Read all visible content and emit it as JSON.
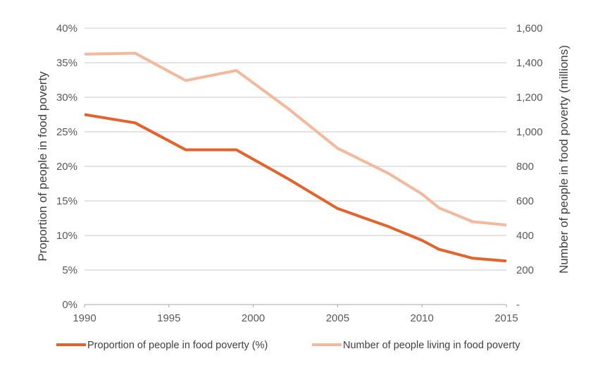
{
  "chart_data": {
    "type": "line",
    "x": [
      1990,
      1993,
      1996,
      1999,
      2002,
      2005,
      2008,
      2010,
      2011,
      2013,
      2015
    ],
    "x_ticks": [
      "1990",
      "1995",
      "2000",
      "2005",
      "2010",
      "2015"
    ],
    "x_tick_values": [
      1990,
      1995,
      2000,
      2005,
      2010,
      2015
    ],
    "xlim": [
      1990,
      2015
    ],
    "ylabel": "Proportion of people in food poverty",
    "ylim": [
      0,
      40
    ],
    "y_ticks": [
      "0%",
      "5%",
      "10%",
      "15%",
      "20%",
      "25%",
      "30%",
      "35%",
      "40%"
    ],
    "y_tick_values": [
      0,
      5,
      10,
      15,
      20,
      25,
      30,
      35,
      40
    ],
    "y2label": "Number of people in food poverty (millions)",
    "y2lim": [
      0,
      1600
    ],
    "y2_ticks": [
      "-",
      "200",
      "400",
      "600",
      "800",
      "1,000",
      "1,200",
      "1,400",
      "1,600"
    ],
    "y2_tick_values": [
      0,
      200,
      400,
      600,
      800,
      1000,
      1200,
      1400,
      1600
    ],
    "grid": true,
    "legend_position": "bottom",
    "series": [
      {
        "name": "Proportion of people in food poverty (%)",
        "axis": "left",
        "color": "#e5632b",
        "x": [
          1990,
          1993,
          1996,
          1999,
          2002,
          2005,
          2008,
          2010,
          2011,
          2013,
          2015
        ],
        "values": [
          27.5,
          26.3,
          22.4,
          22.4,
          18.3,
          13.9,
          11.3,
          9.3,
          8.0,
          6.7,
          6.3
        ]
      },
      {
        "name": "Number of people living in food poverty",
        "axis": "right",
        "color": "#f4b89c",
        "x": [
          1990,
          1993,
          1996,
          1999,
          2002,
          2005,
          2008,
          2010,
          2011,
          2013,
          2015
        ],
        "values": [
          1450,
          1455,
          1297,
          1355,
          1140,
          905,
          760,
          640,
          560,
          480,
          460
        ]
      }
    ]
  }
}
